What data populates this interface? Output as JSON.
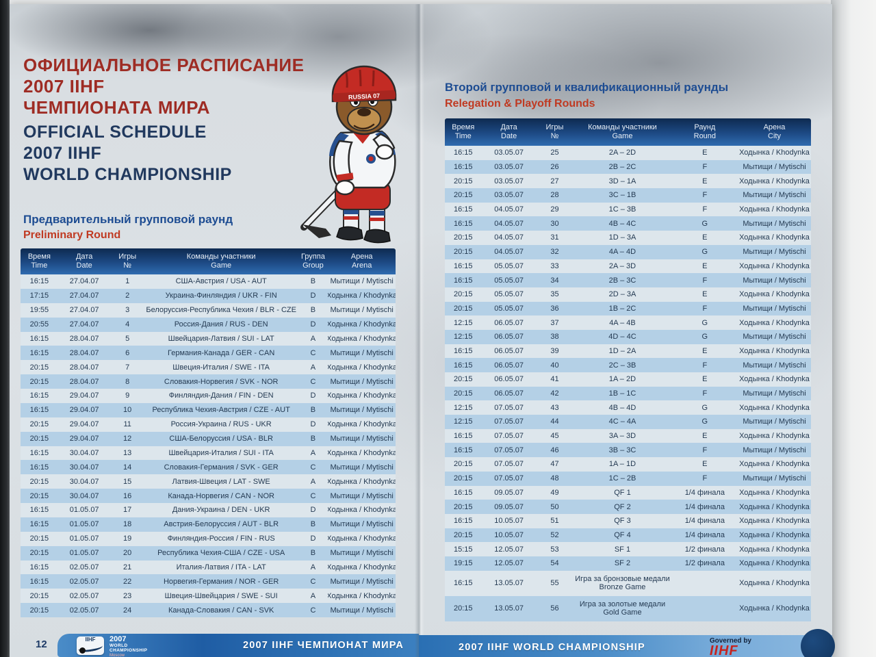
{
  "page_left": {
    "title_ru": [
      "ОФИЦИАЛЬНОЕ РАСПИСАНИЕ",
      "2007 IIHF",
      "ЧЕМПИОНАТА МИРА"
    ],
    "title_en": [
      "OFFICIAL SCHEDULE",
      "2007 IIHF",
      "WORLD CHAMPIONSHIP"
    ],
    "section_ru": "Предварительный групповой раунд",
    "section_en": "Preliminary Round",
    "table": {
      "headers": [
        [
          "Время",
          "Time"
        ],
        [
          "Дата",
          "Date"
        ],
        [
          "Игры",
          "№"
        ],
        [
          "Команды участники",
          "Game"
        ],
        [
          "Группа",
          "Group"
        ],
        [
          "Арена",
          "Arena"
        ]
      ],
      "rows": [
        [
          "16:15",
          "27.04.07",
          "1",
          "США-Австрия / USA - AUT",
          "B",
          "Мытищи / Mytischi"
        ],
        [
          "17:15",
          "27.04.07",
          "2",
          "Украина-Финляндия / UKR - FIN",
          "D",
          "Ходынка / Khodynka"
        ],
        [
          "19:55",
          "27.04.07",
          "3",
          "Белоруссия-Республика Чехия / BLR - CZE",
          "B",
          "Мытищи / Mytischi"
        ],
        [
          "20:55",
          "27.04.07",
          "4",
          "Россия-Дания / RUS - DEN",
          "D",
          "Ходынка / Khodynka"
        ],
        [
          "16:15",
          "28.04.07",
          "5",
          "Швейцария-Латвия / SUI - LAT",
          "A",
          "Ходынка / Khodynka"
        ],
        [
          "16:15",
          "28.04.07",
          "6",
          "Германия-Канада / GER - CAN",
          "C",
          "Мытищи / Mytischi"
        ],
        [
          "20:15",
          "28.04.07",
          "7",
          "Швеция-Италия / SWE - ITA",
          "A",
          "Ходынка / Khodynka"
        ],
        [
          "20:15",
          "28.04.07",
          "8",
          "Словакия-Норвегия / SVK - NOR",
          "C",
          "Мытищи / Mytischi"
        ],
        [
          "16:15",
          "29.04.07",
          "9",
          "Финляндия-Дания / FIN - DEN",
          "D",
          "Ходынка / Khodynka"
        ],
        [
          "16:15",
          "29.04.07",
          "10",
          "Республика Чехия-Австрия / CZE - AUT",
          "B",
          "Мытищи / Mytischi"
        ],
        [
          "20:15",
          "29.04.07",
          "11",
          "Россия-Украина / RUS - UKR",
          "D",
          "Ходынка / Khodynka"
        ],
        [
          "20:15",
          "29.04.07",
          "12",
          "США-Белоруссия / USA - BLR",
          "B",
          "Мытищи / Mytischi"
        ],
        [
          "16:15",
          "30.04.07",
          "13",
          "Швейцария-Италия / SUI - ITA",
          "A",
          "Ходынка / Khodynka"
        ],
        [
          "16:15",
          "30.04.07",
          "14",
          "Словакия-Германия / SVK - GER",
          "C",
          "Мытищи / Mytischi"
        ],
        [
          "20:15",
          "30.04.07",
          "15",
          "Латвия-Швеция / LAT - SWE",
          "A",
          "Ходынка / Khodynka"
        ],
        [
          "20:15",
          "30.04.07",
          "16",
          "Канада-Норвегия / CAN - NOR",
          "C",
          "Мытищи / Mytischi"
        ],
        [
          "16:15",
          "01.05.07",
          "17",
          "Дания-Украина / DEN - UKR",
          "D",
          "Ходынка / Khodynka"
        ],
        [
          "16:15",
          "01.05.07",
          "18",
          "Австрия-Белоруссия / AUT - BLR",
          "B",
          "Мытищи / Mytischi"
        ],
        [
          "20:15",
          "01.05.07",
          "19",
          "Финляндия-Россия / FIN - RUS",
          "D",
          "Ходынка / Khodynka"
        ],
        [
          "20:15",
          "01.05.07",
          "20",
          "Республика Чехия-США / CZE - USA",
          "B",
          "Мытищи / Mytischi"
        ],
        [
          "16:15",
          "02.05.07",
          "21",
          "Италия-Латвия / ITA - LAT",
          "A",
          "Ходынка / Khodynka"
        ],
        [
          "16:15",
          "02.05.07",
          "22",
          "Норвегия-Германия / NOR - GER",
          "C",
          "Мытищи / Mytischi"
        ],
        [
          "20:15",
          "02.05.07",
          "23",
          "Швеция-Швейцария / SWE - SUI",
          "A",
          "Ходынка / Khodynka"
        ],
        [
          "20:15",
          "02.05.07",
          "24",
          "Канада-Словакия / CAN - SVK",
          "C",
          "Мытищи / Mytischi"
        ]
      ]
    },
    "page_number": "12",
    "footer_logo": {
      "iihf": "IIHF",
      "year": "2007",
      "line1": "WORLD",
      "line2": "CHAMPIONSHIP",
      "city": "Moscow"
    },
    "footer_text": "2007 IIHF ЧЕМПИОНАТ МИРА"
  },
  "page_right": {
    "section_ru": "Второй групповой и квалификационный раунды",
    "section_en": "Relegation & Playoff Rounds",
    "table": {
      "headers": [
        [
          "Время",
          "Time"
        ],
        [
          "Дата",
          "Date"
        ],
        [
          "Игры",
          "№"
        ],
        [
          "Команды участники",
          "Game"
        ],
        [
          "Раунд",
          "Round"
        ],
        [
          "Арена",
          "City"
        ]
      ],
      "rows": [
        [
          "16:15",
          "03.05.07",
          "25",
          "2A – 2D",
          "E",
          "Ходынка / Khodynka"
        ],
        [
          "16:15",
          "03.05.07",
          "26",
          "2B – 2C",
          "F",
          "Мытищи / Mytischi"
        ],
        [
          "20:15",
          "03.05.07",
          "27",
          "3D – 1A",
          "E",
          "Ходынка / Khodynka"
        ],
        [
          "20:15",
          "03.05.07",
          "28",
          "3C – 1B",
          "F",
          "Мытищи / Mytischi"
        ],
        [
          "16:15",
          "04.05.07",
          "29",
          "1C – 3B",
          "F",
          "Ходынка / Khodynka"
        ],
        [
          "16:15",
          "04.05.07",
          "30",
          "4B – 4C",
          "G",
          "Мытищи / Mytischi"
        ],
        [
          "20:15",
          "04.05.07",
          "31",
          "1D – 3A",
          "E",
          "Ходынка / Khodynka"
        ],
        [
          "20:15",
          "04.05.07",
          "32",
          "4A – 4D",
          "G",
          "Мытищи / Mytischi"
        ],
        [
          "16:15",
          "05.05.07",
          "33",
          "2A – 3D",
          "E",
          "Ходынка / Khodynka"
        ],
        [
          "16:15",
          "05.05.07",
          "34",
          "2B – 3C",
          "F",
          "Мытищи / Mytischi"
        ],
        [
          "20:15",
          "05.05.07",
          "35",
          "2D – 3A",
          "E",
          "Ходынка / Khodynka"
        ],
        [
          "20:15",
          "05.05.07",
          "36",
          "1B – 2C",
          "F",
          "Мытищи / Mytischi"
        ],
        [
          "12:15",
          "06.05.07",
          "37",
          "4A – 4B",
          "G",
          "Ходынка / Khodynka"
        ],
        [
          "12:15",
          "06.05.07",
          "38",
          "4D – 4C",
          "G",
          "Мытищи / Mytischi"
        ],
        [
          "16:15",
          "06.05.07",
          "39",
          "1D – 2A",
          "E",
          "Ходынка / Khodynka"
        ],
        [
          "16:15",
          "06.05.07",
          "40",
          "2C – 3B",
          "F",
          "Мытищи / Mytischi"
        ],
        [
          "20:15",
          "06.05.07",
          "41",
          "1A – 2D",
          "E",
          "Ходынка / Khodynka"
        ],
        [
          "20:15",
          "06.05.07",
          "42",
          "1B – 1C",
          "F",
          "Мытищи / Mytischi"
        ],
        [
          "12:15",
          "07.05.07",
          "43",
          "4B – 4D",
          "G",
          "Ходынка / Khodynka"
        ],
        [
          "12:15",
          "07.05.07",
          "44",
          "4C – 4A",
          "G",
          "Мытищи / Mytischi"
        ],
        [
          "16:15",
          "07.05.07",
          "45",
          "3A – 3D",
          "E",
          "Ходынка / Khodynka"
        ],
        [
          "16:15",
          "07.05.07",
          "46",
          "3B – 3C",
          "F",
          "Мытищи / Mytischi"
        ],
        [
          "20:15",
          "07.05.07",
          "47",
          "1A – 1D",
          "E",
          "Ходынка / Khodynka"
        ],
        [
          "20:15",
          "07.05.07",
          "48",
          "1C – 2B",
          "F",
          "Мытищи / Mytischi"
        ],
        [
          "16:15",
          "09.05.07",
          "49",
          "QF 1",
          "1/4 финала",
          "Ходынка / Khodynka"
        ],
        [
          "20:15",
          "09.05.07",
          "50",
          "QF 2",
          "1/4 финала",
          "Ходынка / Khodynka"
        ],
        [
          "16:15",
          "10.05.07",
          "51",
          "QF 3",
          "1/4 финала",
          "Ходынка / Khodynka"
        ],
        [
          "20:15",
          "10.05.07",
          "52",
          "QF 4",
          "1/4 финала",
          "Ходынка / Khodynka"
        ],
        [
          "15:15",
          "12.05.07",
          "53",
          "SF 1",
          "1/2 финала",
          "Ходынка / Khodynka"
        ],
        [
          "19:15",
          "12.05.07",
          "54",
          "SF 2",
          "1/2 финала",
          "Ходынка / Khodynka"
        ],
        [
          "16:15",
          "13.05.07",
          "55",
          "Игра за бронзовые медали\nBronze Game",
          "",
          "Ходынка / Khodynka"
        ],
        [
          "20:15",
          "13.05.07",
          "56",
          "Игра за золотые медали\nGold Game",
          "",
          "Ходынка / Khodynka"
        ]
      ]
    },
    "footer_text": "2007 IIHF WORLD CHAMPIONSHIP",
    "governed_by": "Governed by",
    "governed_logo": "IIHF"
  },
  "mascot": {
    "helmet_text": "RUSSIA 07"
  },
  "colors": {
    "title_red": "#9e2c24",
    "title_blue": "#21395e",
    "section_blue": "#1d4c92",
    "section_red": "#c03a22",
    "header_gradient_top": "#0e2a50",
    "header_gradient_bottom": "#2f6cb0",
    "row_light": "#dde6ec",
    "row_blue": "#b4d0e6",
    "footer_band_blue": "#2e72b5",
    "governed_logo_red": "#c5231f"
  }
}
